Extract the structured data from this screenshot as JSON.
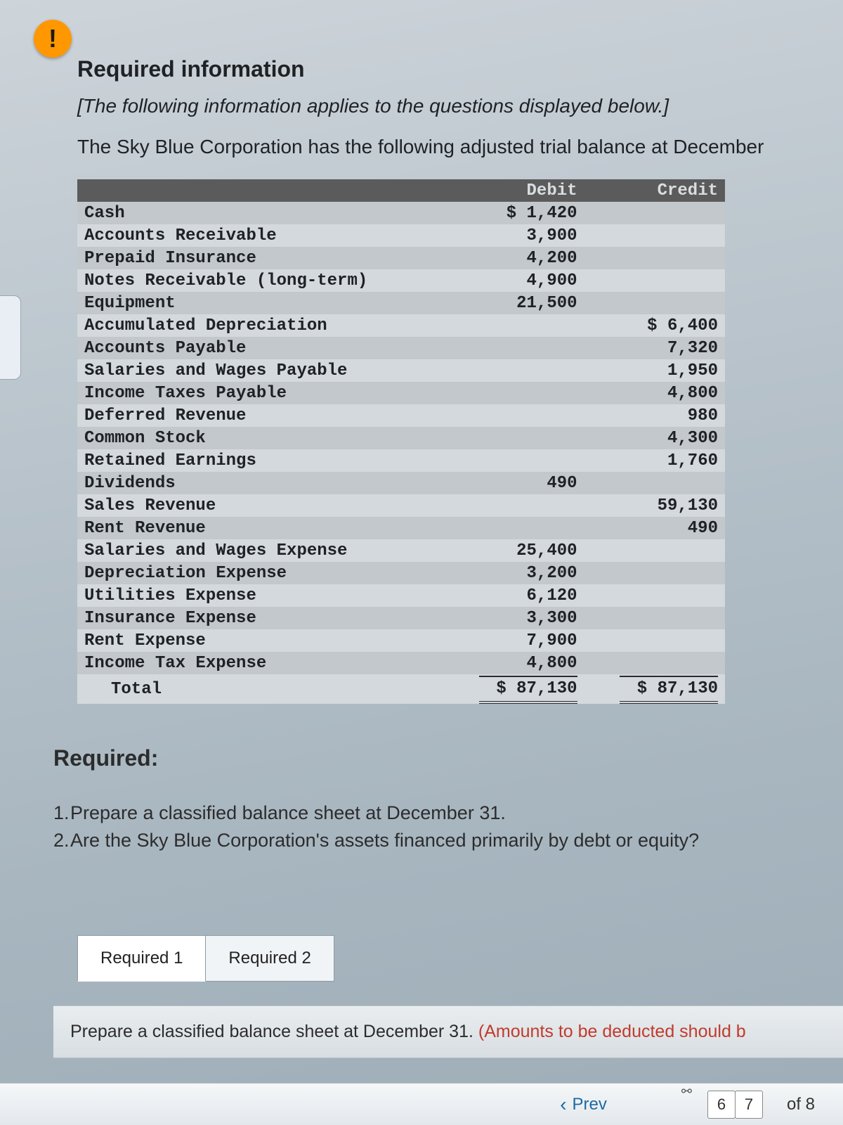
{
  "header": {
    "required_info_label": "Required information",
    "context_line": "[The following information applies to the questions displayed below.]",
    "intro_line": "The Sky Blue Corporation has the following adjusted trial balance at December"
  },
  "trial_balance": {
    "col_account": "",
    "col_debit": "Debit",
    "col_credit": "Credit",
    "rows": [
      {
        "account": "Cash",
        "debit": "$ 1,420",
        "credit": ""
      },
      {
        "account": "Accounts Receivable",
        "debit": "3,900",
        "credit": ""
      },
      {
        "account": "Prepaid Insurance",
        "debit": "4,200",
        "credit": ""
      },
      {
        "account": "Notes Receivable (long-term)",
        "debit": "4,900",
        "credit": ""
      },
      {
        "account": "Equipment",
        "debit": "21,500",
        "credit": ""
      },
      {
        "account": "Accumulated Depreciation",
        "debit": "",
        "credit": "$ 6,400"
      },
      {
        "account": "Accounts Payable",
        "debit": "",
        "credit": "7,320"
      },
      {
        "account": "Salaries and Wages Payable",
        "debit": "",
        "credit": "1,950"
      },
      {
        "account": "Income Taxes Payable",
        "debit": "",
        "credit": "4,800"
      },
      {
        "account": "Deferred Revenue",
        "debit": "",
        "credit": "980"
      },
      {
        "account": "Common Stock",
        "debit": "",
        "credit": "4,300"
      },
      {
        "account": "Retained Earnings",
        "debit": "",
        "credit": "1,760"
      },
      {
        "account": "Dividends",
        "debit": "490",
        "credit": ""
      },
      {
        "account": "Sales Revenue",
        "debit": "",
        "credit": "59,130"
      },
      {
        "account": "Rent Revenue",
        "debit": "",
        "credit": "490"
      },
      {
        "account": "Salaries and Wages Expense",
        "debit": "25,400",
        "credit": ""
      },
      {
        "account": "Depreciation Expense",
        "debit": "3,200",
        "credit": ""
      },
      {
        "account": "Utilities Expense",
        "debit": "6,120",
        "credit": ""
      },
      {
        "account": "Insurance Expense",
        "debit": "3,300",
        "credit": ""
      },
      {
        "account": "Rent Expense",
        "debit": "7,900",
        "credit": ""
      },
      {
        "account": "Income Tax Expense",
        "debit": "4,800",
        "credit": ""
      }
    ],
    "total_label": "Total",
    "total_debit": "$ 87,130",
    "total_credit": "$ 87,130"
  },
  "requirements": {
    "heading": "Required:",
    "items": [
      "Prepare a classified balance sheet at December 31.",
      "Are the Sky Blue Corporation's assets financed primarily by debt or equity?"
    ]
  },
  "tabs": {
    "t1": "Required 1",
    "t2": "Required 2"
  },
  "instruction": {
    "black": "Prepare a classified balance sheet at December 31. ",
    "red": "(Amounts to be deducted should b"
  },
  "pager": {
    "prev": "Prev",
    "page_a": "6",
    "page_b": "7",
    "of": "of 8"
  },
  "colors": {
    "header_row_bg": "#5b5b5c",
    "header_row_fg": "#d9dde0",
    "row_even": "#c3c8cd",
    "row_odd": "#d4d9dd",
    "alert_bg": "#ff9800",
    "red_text": "#c23a2c",
    "link_blue": "#1c6aa5"
  }
}
